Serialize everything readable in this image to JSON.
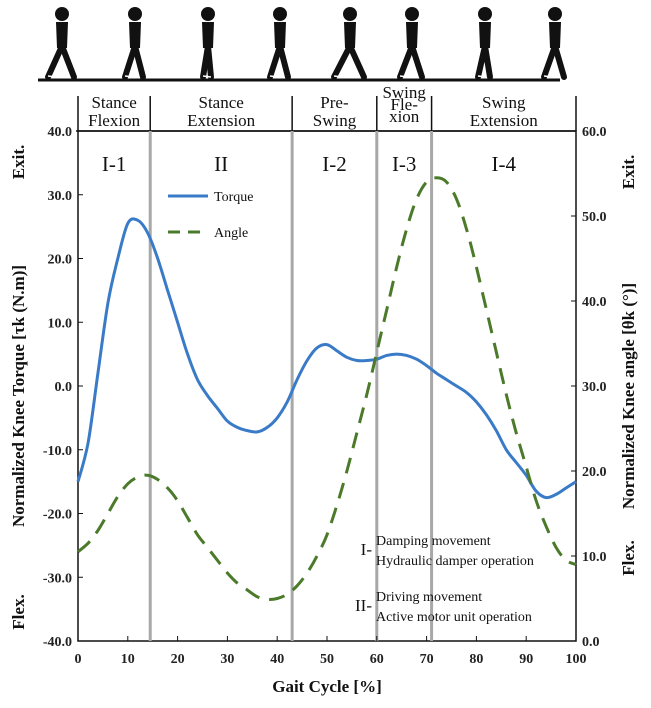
{
  "chart_data": {
    "type": "line",
    "xlabel": "Gait Cycle [%]",
    "ylabel_left": "Normalized Knee Torque [τk (N.m)]",
    "ylabel_right": "Normalized Knee angle [θk (°)]",
    "left_end_labels": {
      "top": "Exit.",
      "bottom": "Flex."
    },
    "right_end_labels": {
      "top": "Exit.",
      "bottom": "Flex."
    },
    "xlim": [
      0,
      100
    ],
    "ylim_left": [
      -40,
      40
    ],
    "ylim_right": [
      0,
      60
    ],
    "x_ticks": [
      "0",
      "10",
      "20",
      "30",
      "40",
      "50",
      "60",
      "70",
      "80",
      "90",
      "100"
    ],
    "y_ticks_left": [
      "40.0",
      "30.0",
      "20.0",
      "10.0",
      "0.0",
      "-10.0",
      "-20.0",
      "-30.0",
      "-40.0"
    ],
    "y_ticks_right": [
      "60.0",
      "50.0",
      "40.0",
      "30.0",
      "20.0",
      "10.0",
      "0.0"
    ],
    "phase_boundaries": [
      14.5,
      43,
      60,
      71
    ],
    "phases": [
      {
        "line1": "Stance",
        "line2": "Flexion"
      },
      {
        "line1": "Stance",
        "line2": "Extension"
      },
      {
        "line1": "Pre-",
        "line2": "Swing"
      },
      {
        "line1": "Swing",
        "line2": "Fle-",
        "line3": "xion"
      },
      {
        "line1": "Swing",
        "line2": "Extension"
      }
    ],
    "regions": [
      "I-1",
      "II",
      "I-2",
      "I-3",
      "I-4"
    ],
    "legend": [
      {
        "name": "Torque",
        "color": "#3a7bc8",
        "style": "solid"
      },
      {
        "name": "Angle",
        "color": "#4a7a2a",
        "style": "dashed"
      }
    ],
    "notes": [
      {
        "key": "I-",
        "line1": "Damping movement",
        "line2": "Hydraulic damper operation"
      },
      {
        "key": "II-",
        "line1": "Driving movement",
        "line2": "Active motor unit operation"
      }
    ],
    "series": [
      {
        "name": "Torque",
        "axis": "left",
        "x": [
          0,
          2,
          4,
          6,
          8,
          10,
          12,
          14,
          16,
          18,
          20,
          22,
          24,
          26,
          28,
          30,
          32,
          34,
          36,
          38,
          40,
          42,
          44,
          46,
          48,
          50,
          52,
          54,
          56,
          58,
          60,
          62,
          64,
          66,
          68,
          70,
          72,
          74,
          76,
          78,
          80,
          82,
          84,
          86,
          88,
          90,
          92,
          94,
          96,
          98,
          100
        ],
        "values": [
          -15,
          -9,
          2,
          13,
          20,
          25.5,
          26,
          24,
          20,
          15,
          10,
          5,
          1,
          -1.5,
          -3.5,
          -5.5,
          -6.5,
          -7,
          -7.2,
          -6.5,
          -5,
          -2.5,
          1,
          4,
          6,
          6.5,
          5.5,
          4.5,
          4,
          4,
          4.2,
          4.8,
          5,
          4.8,
          4.2,
          3.2,
          2,
          1,
          0,
          -1,
          -2.5,
          -4.5,
          -7,
          -10,
          -12,
          -14,
          -16.5,
          -17.5,
          -17,
          -16,
          -15
        ]
      },
      {
        "name": "Angle",
        "axis": "right",
        "x": [
          0,
          2,
          4,
          6,
          8,
          10,
          12,
          14,
          16,
          18,
          20,
          22,
          24,
          26,
          28,
          30,
          32,
          34,
          36,
          38,
          40,
          42,
          44,
          46,
          48,
          50,
          52,
          54,
          56,
          58,
          60,
          62,
          64,
          66,
          68,
          70,
          72,
          74,
          76,
          78,
          80,
          82,
          84,
          86,
          88,
          90,
          92,
          94,
          96,
          98,
          100
        ],
        "values": [
          10.5,
          11.5,
          13,
          15,
          17,
          18.5,
          19.3,
          19.5,
          19,
          18,
          16.5,
          14.5,
          12.5,
          11,
          9.5,
          8,
          6.8,
          6,
          5.2,
          4.9,
          5,
          5.5,
          6.5,
          8,
          10,
          12.5,
          16,
          20,
          24.5,
          29,
          34,
          39,
          44,
          48.5,
          52,
          54,
          54.5,
          54,
          52,
          48.5,
          44,
          39,
          34,
          29,
          24.5,
          20.5,
          16.5,
          13.5,
          11,
          9.5,
          9
        ]
      }
    ]
  }
}
